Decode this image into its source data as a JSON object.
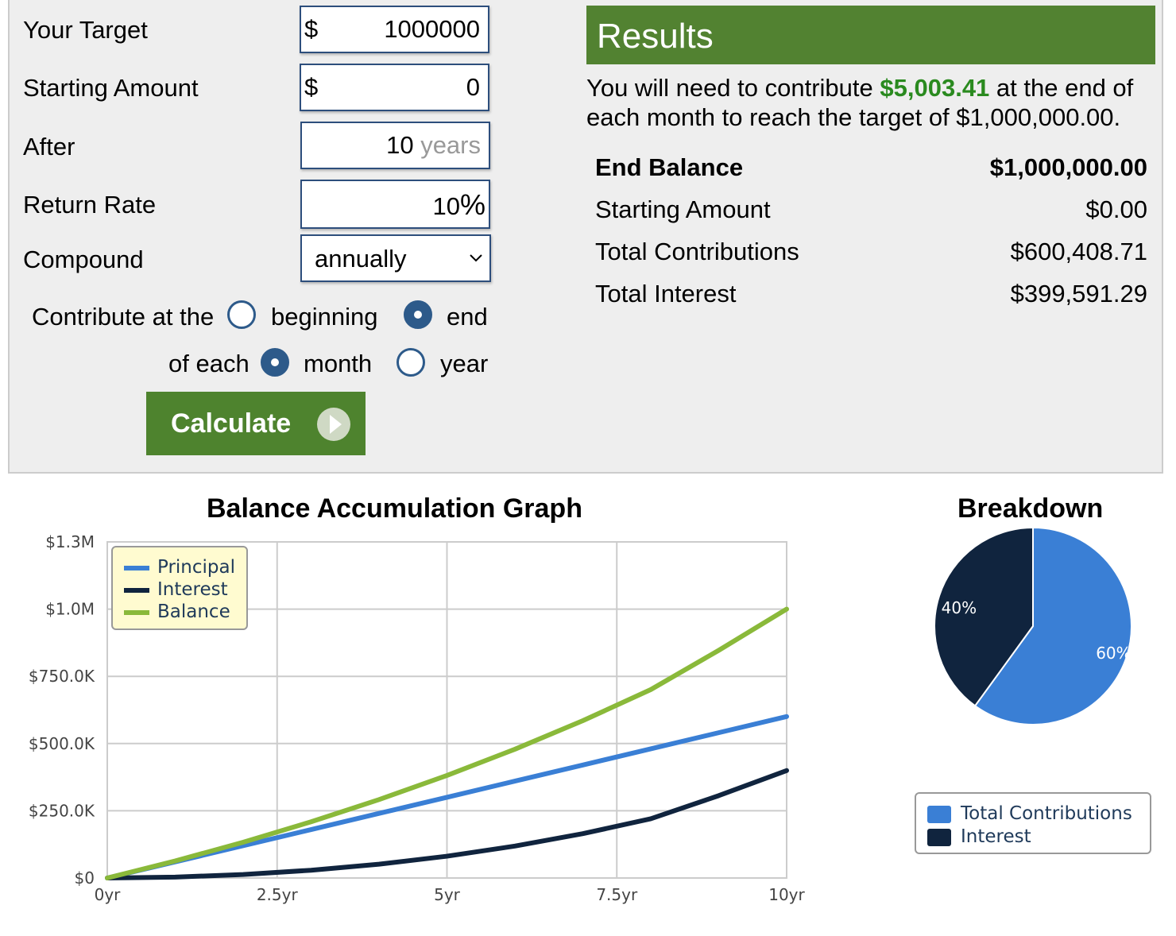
{
  "form": {
    "target_label": "Your Target",
    "target_prefix": "$",
    "target_value": "1000000",
    "starting_label": "Starting Amount",
    "starting_prefix": "$",
    "starting_value": "0",
    "after_label": "After",
    "after_value": "10",
    "after_unit": "years",
    "rate_label": "Return Rate",
    "rate_value": "10",
    "rate_unit": "%",
    "compound_label": "Compound",
    "compound_value": "annually",
    "contribute_label": "Contribute at the",
    "opt_beginning": "beginning",
    "opt_end": "end",
    "each_label": "of each",
    "opt_month": "month",
    "opt_year": "year",
    "calculate_label": "Calculate"
  },
  "results": {
    "title": "Results",
    "sentence_pre": "You will need to contribute ",
    "monthly_amount": "$5,003.41",
    "sentence_post": " at the end of each month to reach the target of $1,000,000.00.",
    "rows": [
      {
        "label": "End Balance",
        "value": "$1,000,000.00"
      },
      {
        "label": "Starting Amount",
        "value": "$0.00"
      },
      {
        "label": "Total Contributions",
        "value": "$600,408.71"
      },
      {
        "label": "Total Interest",
        "value": "$399,591.29"
      }
    ]
  },
  "colors": {
    "principal": "#3a7fd5",
    "interest": "#10243e",
    "balance": "#8ab93a",
    "accent_green": "#528231"
  },
  "chart_data": [
    {
      "type": "line",
      "title": "Balance Accumulation Graph",
      "x": [
        0,
        1,
        2,
        3,
        4,
        5,
        6,
        7,
        8,
        9,
        10
      ],
      "x_ticks": [
        "0yr",
        "2.5yr",
        "5yr",
        "7.5yr",
        "10yr"
      ],
      "x_tick_values": [
        0,
        2.5,
        5,
        7.5,
        10
      ],
      "y_ticks": [
        "$0",
        "$250.0K",
        "$500.0K",
        "$750.0K",
        "$1.0M",
        "$1.3M"
      ],
      "y_tick_values": [
        0,
        250000,
        500000,
        750000,
        1000000,
        1250000
      ],
      "ylim": [
        0,
        1250000
      ],
      "xlim": [
        0,
        10
      ],
      "legend_position": "top-left",
      "series": [
        {
          "name": "Principal",
          "values": [
            0,
            60041,
            120082,
            180123,
            240163,
            300204,
            360245,
            420286,
            480327,
            540368,
            600409
          ]
        },
        {
          "name": "Interest",
          "values": [
            0,
            3300,
            13000,
            28900,
            51400,
            81100,
            118700,
            164800,
            220300,
            306300,
            399591
          ]
        },
        {
          "name": "Balance",
          "values": [
            0,
            63341,
            133082,
            209023,
            291563,
            381304,
            478945,
            585086,
            700627,
            846668,
            1000000
          ]
        }
      ]
    },
    {
      "type": "pie",
      "title": "Breakdown",
      "labels": [
        "Total Contributions",
        "Interest"
      ],
      "values": [
        60,
        40
      ],
      "value_labels": [
        "60%",
        "40%"
      ]
    }
  ]
}
